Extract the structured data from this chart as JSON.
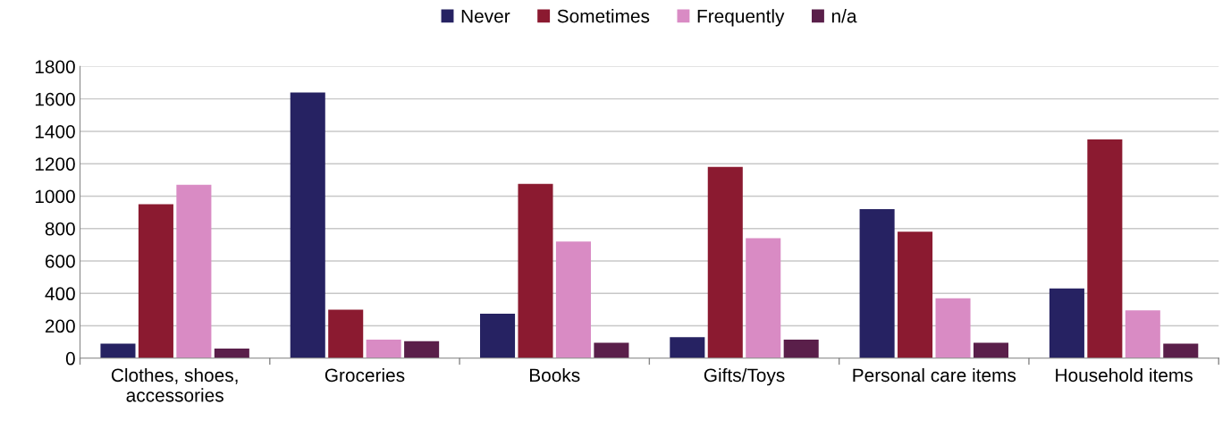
{
  "chart_data": {
    "type": "bar",
    "categories": [
      "Clothes, shoes,\naccessories",
      "Groceries",
      "Books",
      "Gifts/Toys",
      "Personal care items",
      "Household items"
    ],
    "series": [
      {
        "name": "Never",
        "color": "#262262",
        "values": [
          90,
          1640,
          275,
          130,
          920,
          430
        ]
      },
      {
        "name": "Sometimes",
        "color": "#8b1a30",
        "values": [
          950,
          300,
          1075,
          1180,
          780,
          1350
        ]
      },
      {
        "name": "Frequently",
        "color": "#d98bc4",
        "values": [
          1070,
          115,
          720,
          740,
          370,
          295
        ]
      },
      {
        "name": "n/a",
        "color": "#5a1f4a",
        "values": [
          60,
          105,
          95,
          115,
          95,
          90
        ]
      }
    ],
    "ylim": [
      0,
      1800
    ],
    "yticks": [
      0,
      200,
      400,
      600,
      800,
      1000,
      1200,
      1400,
      1600,
      1800
    ],
    "grid": "y",
    "legend": "top"
  }
}
